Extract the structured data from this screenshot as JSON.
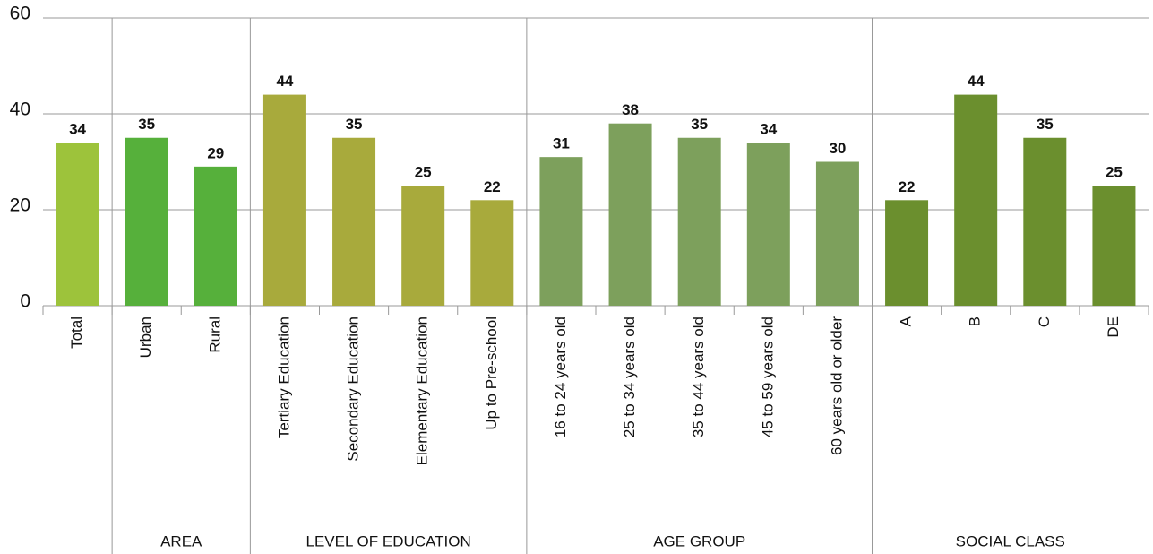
{
  "chart_data": {
    "type": "bar",
    "groups": [
      {
        "name": null,
        "color": "#9dc33b",
        "categories": [
          "Total"
        ],
        "values": [
          34
        ]
      },
      {
        "name": "AREA",
        "color": "#56b03b",
        "categories": [
          "Urban",
          "Rural"
        ],
        "values": [
          35,
          29
        ]
      },
      {
        "name": "LEVEL OF EDUCATION",
        "color": "#a8aa3c",
        "categories": [
          "Tertiary Education",
          "Secondary Education",
          "Elementary Education",
          "Up to Pre-school"
        ],
        "values": [
          44,
          35,
          25,
          22
        ]
      },
      {
        "name": "AGE GROUP",
        "color": "#7da05c",
        "categories": [
          "16 to 24 years old",
          "25 to 34 years old",
          "35 to 44 years old",
          "45 to 59 years old",
          "60 years old or older"
        ],
        "values": [
          31,
          38,
          35,
          34,
          30
        ]
      },
      {
        "name": "SOCIAL CLASS",
        "color": "#6b8f2e",
        "categories": [
          "A",
          "B",
          "C",
          "DE"
        ],
        "values": [
          22,
          44,
          35,
          25
        ]
      }
    ],
    "ylim": [
      0,
      60
    ],
    "yticks": [
      0,
      20,
      40,
      60
    ],
    "grid": true
  }
}
